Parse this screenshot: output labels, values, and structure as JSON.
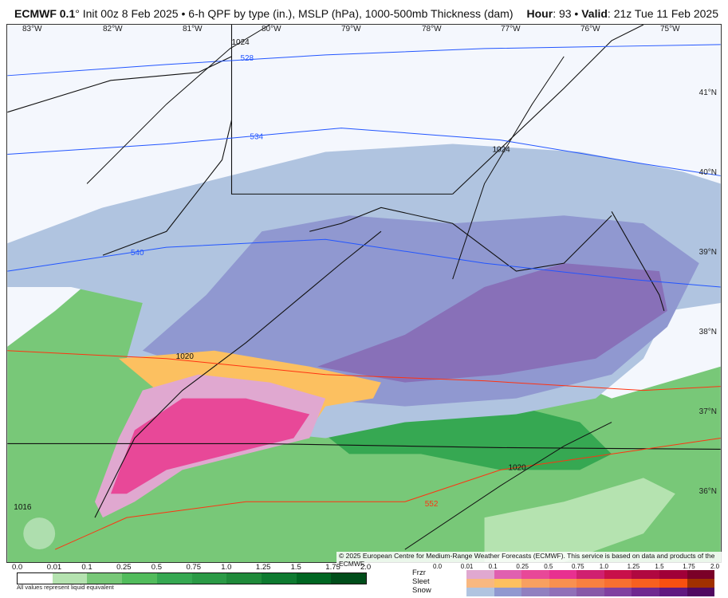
{
  "header": {
    "model": "ECMWF 0.1",
    "deg": "°",
    "init": "Init 00z 8 Feb 2025 • 6-h QPF by type (in.), MSLP (hPa), 1000-500mb Thickness (dam)",
    "hour_label": "Hour",
    "hour": ": 93 • ",
    "valid_label": "Valid",
    "valid": ": 21z Tue 11 Feb 2025"
  },
  "lon_labels": [
    "83°W",
    "82°W",
    "81°W",
    "80°W",
    "79°W",
    "78°W",
    "77°W",
    "76°W",
    "75°W"
  ],
  "lat_labels": [
    "41°N",
    "40°N",
    "39°N",
    "38°N",
    "37°N",
    "36°N"
  ],
  "contours": {
    "thickness": [
      "528",
      "534",
      "540",
      "552"
    ],
    "mslp": [
      "1024",
      "1024",
      "1020",
      "1020",
      "1016"
    ]
  },
  "copyright": "© 2025 European Centre for Medium-Range Weather Forecasts (ECMWF). This service is based on data and products of the ECMWF.",
  "logo": "WeatherBELL",
  "legend": {
    "rain_ticks": [
      "0.0",
      "0.01",
      "0.1",
      "0.25",
      "0.5",
      "0.75",
      "1.0",
      "1.25",
      "1.5",
      "1.75",
      "2.0"
    ],
    "rain_colors": [
      "#ffffff",
      "#b5e3b0",
      "#78c878",
      "#52bc5c",
      "#36a852",
      "#2b9a46",
      "#1f8a3a",
      "#0e7a30",
      "#006622",
      "#004d1a"
    ],
    "note": "All values represent liquid equivalent",
    "type_ticks": [
      "0.0",
      "0.01",
      "0.1",
      "0.25",
      "0.5",
      "0.75",
      "1.0",
      "1.25",
      "1.5",
      "1.75",
      "2.0"
    ],
    "types": [
      {
        "label": "Frzr",
        "colors": [
          "#e0a8d0",
          "#e060b0",
          "#e84898",
          "#e83090",
          "#d02070",
          "#c8104a",
          "#b00840",
          "#a00038",
          "#7a0028"
        ]
      },
      {
        "label": "Sleet",
        "colors": [
          "#f8b880",
          "#fcc060",
          "#f8a060",
          "#f89050",
          "#f88040",
          "#f87030",
          "#f86020",
          "#f85010",
          "#a03000"
        ]
      },
      {
        "label": "Snow",
        "colors": [
          "#b0c4e0",
          "#9098d0",
          "#9080c0",
          "#9070b8",
          "#8858a8",
          "#8040a0",
          "#702890",
          "#601880",
          "#500860"
        ]
      }
    ]
  }
}
